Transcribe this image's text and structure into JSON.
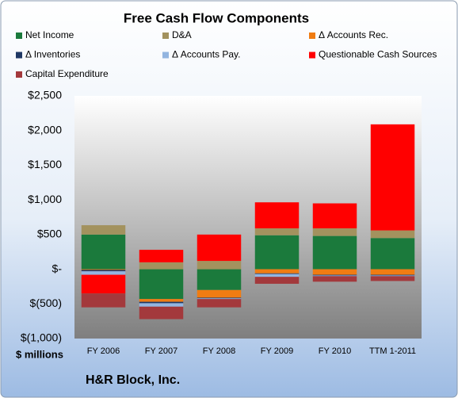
{
  "chart_data": {
    "type": "stacked_bar",
    "title": "Free Cash Flow Components",
    "ylabel": "$ millions",
    "footer": "H&R Block, Inc.",
    "categories": [
      "FY 2006",
      "FY 2007",
      "FY 2008",
      "FY 2009",
      "FY 2010",
      "TTM 1-2011"
    ],
    "series": [
      {
        "name": "Net Income",
        "color": "#1b7a3c",
        "values": [
          500,
          -430,
          -300,
          490,
          480,
          450
        ]
      },
      {
        "name": "D&A",
        "color": "#a3925e",
        "values": [
          135,
          100,
          120,
          100,
          110,
          110
        ]
      },
      {
        "name": "Δ Accounts Rec.",
        "color": "#f07c12",
        "values": [
          -10,
          -40,
          -110,
          -60,
          -80,
          -80
        ]
      },
      {
        "name": "Δ Inventories",
        "color": "#1f3864",
        "values": [
          -20,
          -20,
          -10,
          -10,
          -10,
          -10
        ]
      },
      {
        "name": "Δ Accounts Pay.",
        "color": "#93b5e0",
        "values": [
          -50,
          -50,
          -10,
          -40,
          -10,
          -10
        ]
      },
      {
        "name": "Questionable Cash Sources",
        "color": "#ff0000",
        "values": [
          -270,
          180,
          380,
          375,
          360,
          1530
        ]
      },
      {
        "name": "Capital Expenditure",
        "color": "#a3393c",
        "values": [
          -200,
          -180,
          -120,
          -100,
          -80,
          -70
        ]
      }
    ],
    "ylim": [
      -1000,
      2500
    ],
    "yticks": [
      {
        "value": -1000,
        "label": "$(1,000)"
      },
      {
        "value": -500,
        "label": "$(500)"
      },
      {
        "value": 0,
        "label": "$-"
      },
      {
        "value": 500,
        "label": "$500"
      },
      {
        "value": 1000,
        "label": "$1,000"
      },
      {
        "value": 1500,
        "label": "$1,500"
      },
      {
        "value": 2000,
        "label": "$2,000"
      },
      {
        "value": 2500,
        "label": "$2,500"
      }
    ],
    "grid": false
  }
}
